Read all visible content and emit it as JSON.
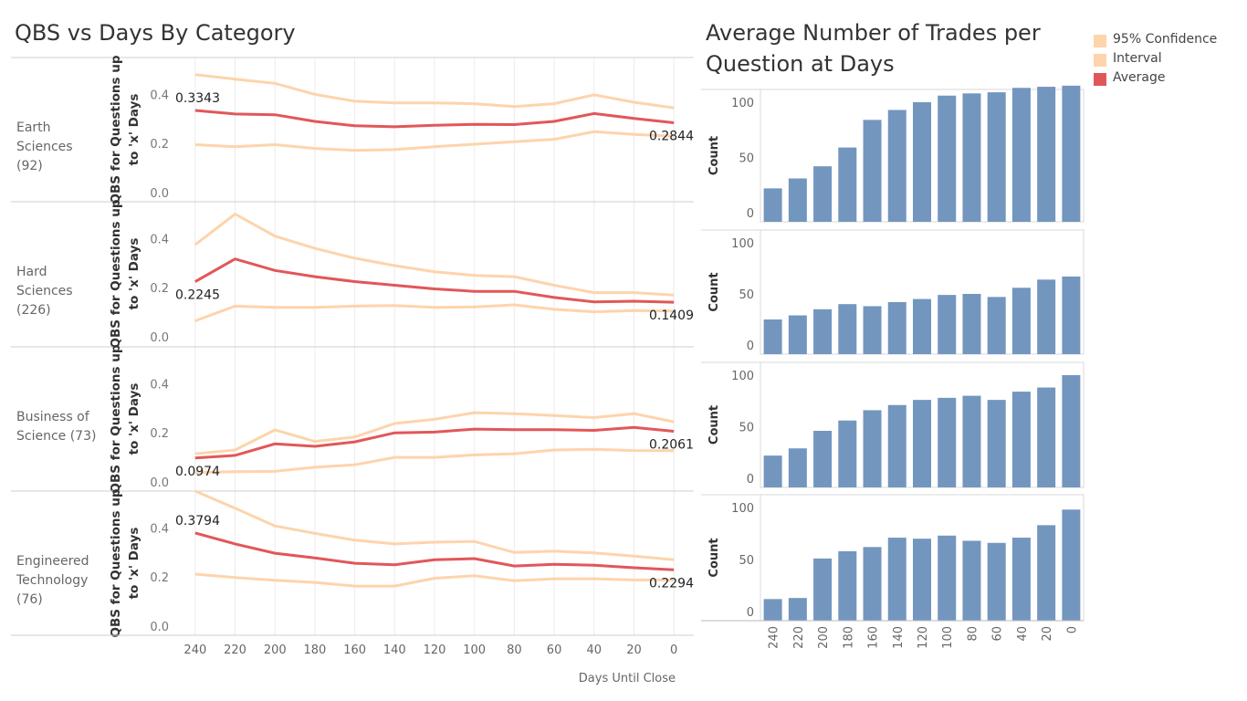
{
  "left_title": "QBS vs Days By Category",
  "right_title": "Average Number of Trades per Question at Days",
  "legend": [
    {
      "label": "95% Confidence",
      "color": "#fdd4ac"
    },
    {
      "label": "Interval",
      "color": "#fdd4ac"
    },
    {
      "label": "Average",
      "color": "#e15759"
    }
  ],
  "chart_data": [
    {
      "type": "line",
      "title": "QBS vs Days By Category",
      "xlabel": "Days Until Close",
      "ylabel": "QBS for Questions up to 'x' Days",
      "x": [
        240,
        220,
        200,
        180,
        160,
        140,
        120,
        100,
        80,
        60,
        40,
        20,
        0
      ],
      "xlim": [
        250,
        -10
      ],
      "ylim": [
        0,
        0.55
      ],
      "y_ticks": [
        "0.0",
        "0.2",
        "0.4"
      ],
      "x_ticks": [
        "240",
        "220",
        "200",
        "180",
        "160",
        "140",
        "120",
        "100",
        "80",
        "60",
        "40",
        "20",
        "0"
      ],
      "grid": true,
      "panels": [
        {
          "category_line1": "Earth",
          "category_line2": "Sciences",
          "category_line3": "(92)",
          "average": [
            0.3343,
            0.32,
            0.317,
            0.29,
            0.272,
            0.268,
            0.274,
            0.278,
            0.277,
            0.29,
            0.322,
            0.302,
            0.2844
          ],
          "upper": [
            0.48,
            0.462,
            0.445,
            0.4,
            0.372,
            0.365,
            0.365,
            0.362,
            0.35,
            0.362,
            0.398,
            0.368,
            0.345
          ],
          "lower": [
            0.195,
            0.187,
            0.195,
            0.18,
            0.172,
            0.175,
            0.187,
            0.197,
            0.207,
            0.217,
            0.248,
            0.237,
            0.23
          ],
          "start_label": "0.3343",
          "end_label": "0.2844"
        },
        {
          "category_line1": "Hard",
          "category_line2": "Sciences",
          "category_line3": "(226)",
          "average": [
            0.2245,
            0.317,
            0.27,
            0.245,
            0.225,
            0.21,
            0.195,
            0.185,
            0.185,
            0.16,
            0.142,
            0.145,
            0.1409
          ],
          "upper": [
            0.375,
            0.5,
            0.41,
            0.36,
            0.32,
            0.29,
            0.265,
            0.25,
            0.245,
            0.21,
            0.18,
            0.18,
            0.17
          ],
          "lower": [
            0.065,
            0.125,
            0.12,
            0.12,
            0.125,
            0.127,
            0.12,
            0.122,
            0.13,
            0.112,
            0.102,
            0.107,
            0.105
          ],
          "start_label": "0.2245",
          "end_label": "0.1409"
        },
        {
          "category_line1": "Business of",
          "category_line2": "Science (73)",
          "category_line3": "",
          "average": [
            0.0974,
            0.108,
            0.155,
            0.145,
            0.163,
            0.2,
            0.203,
            0.215,
            0.213,
            0.213,
            0.21,
            0.222,
            0.2061
          ],
          "upper": [
            0.115,
            0.13,
            0.212,
            0.165,
            0.183,
            0.238,
            0.255,
            0.282,
            0.278,
            0.27,
            0.262,
            0.278,
            0.245
          ],
          "lower": [
            0.038,
            0.042,
            0.043,
            0.06,
            0.07,
            0.1,
            0.1,
            0.11,
            0.115,
            0.13,
            0.133,
            0.128,
            0.127
          ],
          "start_label": "0.0974",
          "end_label": "0.2061"
        },
        {
          "category_line1": "Engineered",
          "category_line2": "Technology",
          "category_line3": "(76)",
          "average": [
            0.3794,
            0.335,
            0.297,
            0.278,
            0.256,
            0.25,
            0.27,
            0.275,
            0.245,
            0.252,
            0.248,
            0.238,
            0.2294
          ],
          "upper": [
            0.55,
            0.48,
            0.408,
            0.378,
            0.35,
            0.335,
            0.342,
            0.345,
            0.3,
            0.305,
            0.298,
            0.285,
            0.27
          ],
          "lower": [
            0.212,
            0.198,
            0.187,
            0.178,
            0.163,
            0.163,
            0.195,
            0.205,
            0.185,
            0.193,
            0.193,
            0.188,
            0.188
          ],
          "start_label": "0.3794",
          "end_label": "0.2294"
        }
      ]
    },
    {
      "type": "bar",
      "title": "Average Number of Trades per Question at Days",
      "ylabel": "Count",
      "categories": [
        "240",
        "220",
        "200",
        "180",
        "160",
        "140",
        "120",
        "100",
        "80",
        "60",
        "40",
        "20",
        "0"
      ],
      "ylim": [
        0,
        120
      ],
      "y_ticks": [
        "0",
        "50",
        "100"
      ],
      "bar_color": "#7396bf",
      "panels": [
        {
          "values": [
            22,
            31,
            42,
            59,
            84,
            93,
            100,
            106,
            108,
            109,
            113,
            114,
            115
          ]
        },
        {
          "values": [
            25,
            29,
            35,
            40,
            38,
            42,
            45,
            49,
            50,
            47,
            56,
            64,
            67
          ]
        },
        {
          "values": [
            22,
            29,
            46,
            56,
            66,
            71,
            76,
            78,
            80,
            76,
            84,
            88,
            100
          ]
        },
        {
          "values": [
            12,
            13,
            51,
            58,
            62,
            71,
            70,
            73,
            68,
            66,
            71,
            83,
            98
          ]
        }
      ]
    }
  ]
}
